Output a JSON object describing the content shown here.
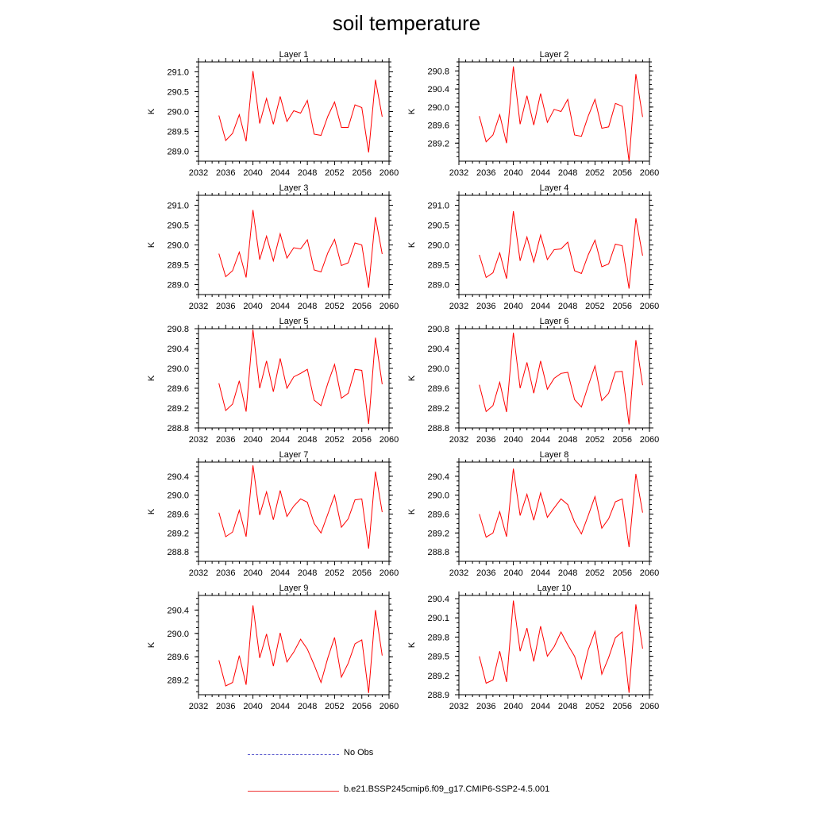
{
  "title": "soil temperature",
  "legend": [
    {
      "label": "No Obs",
      "color": "#5555cc",
      "style": "dashed"
    },
    {
      "label": "b.e21.BSSP245cmip6.f09_g17.CMIP6-SSP2-4.5.001",
      "color": "#ee3333",
      "style": "solid"
    }
  ],
  "chart_data": [
    {
      "type": "line",
      "title": "Layer 1",
      "xlabel": "",
      "ylabel": "K",
      "xlim": [
        2032,
        2060
      ],
      "xticks": [
        2032,
        2036,
        2040,
        2044,
        2048,
        2052,
        2056,
        2060
      ],
      "ylim": [
        288.75,
        291.25
      ],
      "yticks": [
        289.0,
        289.5,
        290.0,
        290.5,
        291.0
      ],
      "ytick_labels": [
        "289.0",
        "289.5",
        "290.0",
        "290.5",
        "291.0"
      ],
      "x": [
        2035,
        2036,
        2037,
        2038,
        2039,
        2040,
        2041,
        2042,
        2043,
        2044,
        2045,
        2046,
        2047,
        2048,
        2049,
        2050,
        2051,
        2052,
        2053,
        2054,
        2055,
        2056,
        2057,
        2058,
        2059
      ],
      "series": [
        {
          "color": "#ff0000",
          "values": [
            289.9,
            289.27,
            289.45,
            289.92,
            289.25,
            291.02,
            289.7,
            290.33,
            289.68,
            290.38,
            289.75,
            290.02,
            289.96,
            290.28,
            289.43,
            289.4,
            289.88,
            290.24,
            289.6,
            289.6,
            290.17,
            290.1,
            288.97,
            290.8,
            289.87
          ]
        }
      ]
    },
    {
      "type": "line",
      "title": "Layer 2",
      "xlabel": "",
      "ylabel": "K",
      "xlim": [
        2032,
        2060
      ],
      "xticks": [
        2032,
        2036,
        2040,
        2044,
        2048,
        2052,
        2056,
        2060
      ],
      "ylim": [
        288.8,
        291.0
      ],
      "yticks": [
        289.2,
        289.6,
        290.0,
        290.4,
        290.8
      ],
      "ytick_labels": [
        "289.2",
        "289.6",
        "290.0",
        "290.4",
        "290.8"
      ],
      "x": [
        2035,
        2036,
        2037,
        2038,
        2039,
        2040,
        2041,
        2042,
        2043,
        2044,
        2045,
        2046,
        2047,
        2048,
        2049,
        2050,
        2051,
        2052,
        2053,
        2054,
        2055,
        2056,
        2057,
        2058,
        2059
      ],
      "series": [
        {
          "color": "#ff0000",
          "values": [
            289.8,
            289.23,
            289.38,
            289.83,
            289.2,
            290.9,
            289.62,
            290.25,
            289.6,
            290.3,
            289.66,
            289.95,
            289.9,
            290.17,
            289.38,
            289.35,
            289.8,
            290.17,
            289.53,
            289.56,
            290.08,
            290.02,
            288.8,
            290.73,
            289.78
          ]
        }
      ]
    },
    {
      "type": "line",
      "title": "Layer 3",
      "xlabel": "",
      "ylabel": "K",
      "xlim": [
        2032,
        2060
      ],
      "xticks": [
        2032,
        2036,
        2040,
        2044,
        2048,
        2052,
        2056,
        2060
      ],
      "ylim": [
        288.75,
        291.25
      ],
      "yticks": [
        289.0,
        289.5,
        290.0,
        290.5,
        291.0
      ],
      "ytick_labels": [
        "289.0",
        "289.5",
        "290.0",
        "290.5",
        "291.0"
      ],
      "x": [
        2035,
        2036,
        2037,
        2038,
        2039,
        2040,
        2041,
        2042,
        2043,
        2044,
        2045,
        2046,
        2047,
        2048,
        2049,
        2050,
        2051,
        2052,
        2053,
        2054,
        2055,
        2056,
        2057,
        2058,
        2059
      ],
      "series": [
        {
          "color": "#ff0000",
          "values": [
            289.78,
            289.2,
            289.35,
            289.82,
            289.18,
            290.88,
            289.63,
            290.22,
            289.6,
            290.28,
            289.67,
            289.93,
            289.9,
            290.13,
            289.37,
            289.32,
            289.8,
            290.14,
            289.48,
            289.55,
            290.05,
            290.0,
            288.92,
            290.7,
            289.77
          ]
        }
      ]
    },
    {
      "type": "line",
      "title": "Layer 4",
      "xlabel": "",
      "ylabel": "K",
      "xlim": [
        2032,
        2060
      ],
      "xticks": [
        2032,
        2036,
        2040,
        2044,
        2048,
        2052,
        2056,
        2060
      ],
      "ylim": [
        288.75,
        291.25
      ],
      "yticks": [
        289.0,
        289.5,
        290.0,
        290.5,
        291.0
      ],
      "ytick_labels": [
        "289.0",
        "289.5",
        "290.0",
        "290.5",
        "291.0"
      ],
      "x": [
        2035,
        2036,
        2037,
        2038,
        2039,
        2040,
        2041,
        2042,
        2043,
        2044,
        2045,
        2046,
        2047,
        2048,
        2049,
        2050,
        2051,
        2052,
        2053,
        2054,
        2055,
        2056,
        2057,
        2058,
        2059
      ],
      "series": [
        {
          "color": "#ff0000",
          "values": [
            289.75,
            289.18,
            289.3,
            289.8,
            289.15,
            290.85,
            289.6,
            290.2,
            289.57,
            290.25,
            289.63,
            289.88,
            289.9,
            290.07,
            289.35,
            289.28,
            289.75,
            290.12,
            289.45,
            289.52,
            290.02,
            289.98,
            288.9,
            290.67,
            289.73
          ]
        }
      ]
    },
    {
      "type": "line",
      "title": "Layer 5",
      "xlabel": "",
      "ylabel": "K",
      "xlim": [
        2032,
        2060
      ],
      "xticks": [
        2032,
        2036,
        2040,
        2044,
        2048,
        2052,
        2056,
        2060
      ],
      "ylim": [
        288.8,
        290.8
      ],
      "yticks": [
        288.8,
        289.2,
        289.6,
        290.0,
        290.4,
        290.8
      ],
      "ytick_labels": [
        "288.8",
        "289.2",
        "289.6",
        "290.0",
        "290.4",
        "290.8"
      ],
      "x": [
        2035,
        2036,
        2037,
        2038,
        2039,
        2040,
        2041,
        2042,
        2043,
        2044,
        2045,
        2046,
        2047,
        2048,
        2049,
        2050,
        2051,
        2052,
        2053,
        2054,
        2055,
        2056,
        2057,
        2058,
        2059
      ],
      "series": [
        {
          "color": "#ff0000",
          "values": [
            289.7,
            289.15,
            289.28,
            289.75,
            289.13,
            290.78,
            289.6,
            290.15,
            289.53,
            290.2,
            289.6,
            289.83,
            289.9,
            289.98,
            289.36,
            289.25,
            289.7,
            290.08,
            289.4,
            289.5,
            289.98,
            289.96,
            288.88,
            290.62,
            289.68
          ]
        }
      ]
    },
    {
      "type": "line",
      "title": "Layer 6",
      "xlabel": "",
      "ylabel": "K",
      "xlim": [
        2032,
        2060
      ],
      "xticks": [
        2032,
        2036,
        2040,
        2044,
        2048,
        2052,
        2056,
        2060
      ],
      "ylim": [
        288.8,
        290.8
      ],
      "yticks": [
        288.8,
        289.2,
        289.6,
        290.0,
        290.4,
        290.8
      ],
      "ytick_labels": [
        "288.8",
        "289.2",
        "289.6",
        "290.0",
        "290.4",
        "290.8"
      ],
      "x": [
        2035,
        2036,
        2037,
        2038,
        2039,
        2040,
        2041,
        2042,
        2043,
        2044,
        2045,
        2046,
        2047,
        2048,
        2049,
        2050,
        2051,
        2052,
        2053,
        2054,
        2055,
        2056,
        2057,
        2058,
        2059
      ],
      "series": [
        {
          "color": "#ff0000",
          "values": [
            289.67,
            289.13,
            289.25,
            289.72,
            289.12,
            290.72,
            289.6,
            290.12,
            289.5,
            290.15,
            289.58,
            289.8,
            289.9,
            289.92,
            289.37,
            289.22,
            289.65,
            290.05,
            289.35,
            289.5,
            289.93,
            289.94,
            288.87,
            290.57,
            289.66
          ]
        }
      ]
    },
    {
      "type": "line",
      "title": "Layer 7",
      "xlabel": "",
      "ylabel": "K",
      "xlim": [
        2032,
        2060
      ],
      "xticks": [
        2032,
        2036,
        2040,
        2044,
        2048,
        2052,
        2056,
        2060
      ],
      "ylim": [
        288.6,
        290.7
      ],
      "yticks": [
        288.8,
        289.2,
        289.6,
        290.0,
        290.4
      ],
      "ytick_labels": [
        "288.8",
        "289.2",
        "289.6",
        "290.0",
        "290.4"
      ],
      "x": [
        2035,
        2036,
        2037,
        2038,
        2039,
        2040,
        2041,
        2042,
        2043,
        2044,
        2045,
        2046,
        2047,
        2048,
        2049,
        2050,
        2051,
        2052,
        2053,
        2054,
        2055,
        2056,
        2057,
        2058,
        2059
      ],
      "series": [
        {
          "color": "#ff0000",
          "values": [
            289.63,
            289.12,
            289.22,
            289.68,
            289.12,
            290.63,
            289.58,
            290.07,
            289.48,
            290.1,
            289.55,
            289.77,
            289.92,
            289.85,
            289.4,
            289.2,
            289.6,
            290.0,
            289.32,
            289.5,
            289.9,
            289.92,
            288.87,
            290.5,
            289.64
          ]
        }
      ]
    },
    {
      "type": "line",
      "title": "Layer 8",
      "xlabel": "",
      "ylabel": "K",
      "xlim": [
        2032,
        2060
      ],
      "xticks": [
        2032,
        2036,
        2040,
        2044,
        2048,
        2052,
        2056,
        2060
      ],
      "ylim": [
        288.6,
        290.7
      ],
      "yticks": [
        288.8,
        289.2,
        289.6,
        290.0,
        290.4
      ],
      "ytick_labels": [
        "288.8",
        "289.2",
        "289.6",
        "290.0",
        "290.4"
      ],
      "x": [
        2035,
        2036,
        2037,
        2038,
        2039,
        2040,
        2041,
        2042,
        2043,
        2044,
        2045,
        2046,
        2047,
        2048,
        2049,
        2050,
        2051,
        2052,
        2053,
        2054,
        2055,
        2056,
        2057,
        2058,
        2059
      ],
      "series": [
        {
          "color": "#ff0000",
          "values": [
            289.6,
            289.11,
            289.2,
            289.65,
            289.12,
            290.56,
            289.57,
            290.02,
            289.47,
            290.05,
            289.53,
            289.73,
            289.92,
            289.8,
            289.43,
            289.18,
            289.57,
            289.97,
            289.3,
            289.5,
            289.86,
            289.92,
            288.9,
            290.45,
            289.63
          ]
        }
      ]
    },
    {
      "type": "line",
      "title": "Layer 9",
      "xlabel": "",
      "ylabel": "K",
      "xlim": [
        2032,
        2060
      ],
      "xticks": [
        2032,
        2036,
        2040,
        2044,
        2048,
        2052,
        2056,
        2060
      ],
      "ylim": [
        288.95,
        290.65
      ],
      "yticks": [
        289.2,
        289.6,
        290.0,
        290.4
      ],
      "ytick_labels": [
        "289.2",
        "289.6",
        "290.0",
        "290.4"
      ],
      "x": [
        2035,
        2036,
        2037,
        2038,
        2039,
        2040,
        2041,
        2042,
        2043,
        2044,
        2045,
        2046,
        2047,
        2048,
        2049,
        2050,
        2051,
        2052,
        2053,
        2054,
        2055,
        2056,
        2057,
        2058,
        2059
      ],
      "series": [
        {
          "color": "#ff0000",
          "values": [
            289.54,
            289.1,
            289.16,
            289.62,
            289.12,
            290.48,
            289.58,
            289.99,
            289.44,
            290.01,
            289.51,
            289.68,
            289.9,
            289.73,
            289.46,
            289.16,
            289.58,
            289.93,
            289.25,
            289.49,
            289.82,
            289.89,
            288.98,
            290.4,
            289.62
          ]
        }
      ]
    },
    {
      "type": "line",
      "title": "Layer 10",
      "xlabel": "",
      "ylabel": "K",
      "xlim": [
        2032,
        2060
      ],
      "xticks": [
        2032,
        2036,
        2040,
        2044,
        2048,
        2052,
        2056,
        2060
      ],
      "ylim": [
        288.9,
        290.45
      ],
      "yticks": [
        288.9,
        289.2,
        289.5,
        289.8,
        290.1,
        290.4
      ],
      "ytick_labels": [
        "288.9",
        "289.2",
        "289.5",
        "289.8",
        "290.1",
        "290.4"
      ],
      "x": [
        2035,
        2036,
        2037,
        2038,
        2039,
        2040,
        2041,
        2042,
        2043,
        2044,
        2045,
        2046,
        2047,
        2048,
        2049,
        2050,
        2051,
        2052,
        2053,
        2054,
        2055,
        2056,
        2057,
        2058,
        2059
      ],
      "series": [
        {
          "color": "#ff0000",
          "values": [
            289.5,
            289.08,
            289.13,
            289.58,
            289.1,
            290.37,
            289.58,
            289.94,
            289.42,
            289.97,
            289.5,
            289.65,
            289.88,
            289.68,
            289.5,
            289.15,
            289.6,
            289.89,
            289.22,
            289.48,
            289.79,
            289.88,
            288.93,
            290.31,
            289.62
          ]
        }
      ]
    }
  ]
}
